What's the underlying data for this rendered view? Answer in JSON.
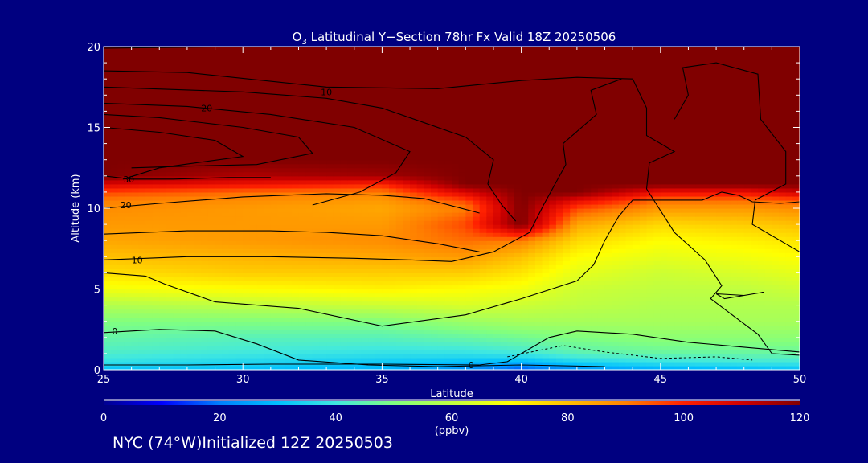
{
  "chart_data": {
    "type": "heatmap",
    "title_parts": [
      "O",
      "3",
      " Latitudinal Y−Section 78hr  Fx Valid 18Z 20250506"
    ],
    "xlabel": "Latitude",
    "ylabel": "Altitude (km)",
    "xlim": [
      25,
      50
    ],
    "ylim": [
      0,
      20
    ],
    "x_ticks": [
      25,
      30,
      35,
      40,
      45,
      50
    ],
    "y_ticks": [
      0,
      5,
      10,
      15,
      20
    ],
    "colorbar": {
      "label": "(ppbv)",
      "min": 0,
      "max": 120,
      "ticks": [
        0,
        20,
        40,
        60,
        80,
        100,
        120
      ],
      "colors": [
        "#000090",
        "#0000ff",
        "#0080ff",
        "#00c0ff",
        "#40e8e0",
        "#80ff80",
        "#c0ff40",
        "#ffff00",
        "#ffc000",
        "#ff8000",
        "#ff2000",
        "#d00000",
        "#800000"
      ]
    },
    "ozone_ppbv": {
      "lat": [
        25,
        30,
        35,
        38,
        40,
        42,
        45,
        48,
        50
      ],
      "alt": [
        0,
        0.5,
        1,
        2,
        3,
        4,
        5,
        6,
        7,
        8,
        9,
        10,
        10.5,
        11,
        11.5,
        12,
        13,
        15,
        20
      ],
      "values": [
        [
          30,
          30,
          28,
          22,
          15,
          22,
          26,
          28,
          30
        ],
        [
          38,
          35,
          32,
          30,
          28,
          34,
          38,
          40,
          40
        ],
        [
          42,
          40,
          38,
          38,
          40,
          44,
          46,
          46,
          46
        ],
        [
          46,
          44,
          44,
          46,
          48,
          50,
          52,
          52,
          52
        ],
        [
          50,
          50,
          50,
          54,
          56,
          56,
          56,
          56,
          56
        ],
        [
          58,
          60,
          62,
          64,
          62,
          60,
          58,
          58,
          58
        ],
        [
          68,
          70,
          72,
          70,
          68,
          62,
          60,
          60,
          62
        ],
        [
          75,
          78,
          78,
          78,
          74,
          66,
          62,
          64,
          66
        ],
        [
          80,
          82,
          84,
          86,
          80,
          70,
          66,
          68,
          70
        ],
        [
          84,
          86,
          88,
          92,
          90,
          76,
          70,
          72,
          74
        ],
        [
          86,
          86,
          86,
          96,
          120,
          84,
          76,
          78,
          80
        ],
        [
          88,
          86,
          84,
          90,
          120,
          96,
          86,
          86,
          88
        ],
        [
          90,
          88,
          86,
          96,
          120,
          106,
          92,
          92,
          94
        ],
        [
          96,
          92,
          90,
          108,
          120,
          120,
          104,
          104,
          110
        ],
        [
          108,
          104,
          100,
          120,
          120,
          120,
          120,
          120,
          120
        ],
        [
          120,
          114,
          116,
          120,
          120,
          120,
          120,
          120,
          120
        ],
        [
          120,
          120,
          120,
          120,
          120,
          120,
          120,
          120,
          120
        ],
        [
          120,
          120,
          120,
          120,
          120,
          120,
          120,
          120,
          120
        ],
        [
          120,
          120,
          120,
          120,
          120,
          120,
          120,
          120,
          120
        ]
      ]
    },
    "contours": [
      {
        "label": "",
        "points": [
          [
            25,
            19.9
          ],
          [
            30,
            20
          ],
          [
            38,
            20
          ],
          [
            45,
            20
          ],
          [
            50,
            20
          ]
        ]
      },
      {
        "label": "10",
        "label_at": [
          33,
          17.2
        ],
        "points": [
          [
            25,
            18.5
          ],
          [
            28,
            18.4
          ],
          [
            33,
            17.5
          ],
          [
            37,
            17.4
          ],
          [
            40,
            17.9
          ],
          [
            42,
            18.1
          ],
          [
            44,
            18.0
          ],
          [
            44.5,
            16.2
          ],
          [
            44.5,
            14.5
          ],
          [
            45.5,
            13.5
          ],
          [
            44.6,
            12.8
          ],
          [
            44.5,
            11.2
          ],
          [
            45.5,
            8.5
          ],
          [
            46.6,
            6.8
          ],
          [
            47.2,
            5.2
          ],
          [
            46.8,
            4.4
          ],
          [
            48.5,
            2.2
          ],
          [
            49,
            1.0
          ],
          [
            50,
            0.9
          ]
        ]
      },
      {
        "label": "",
        "points": [
          [
            25,
            17.5
          ],
          [
            30,
            17.2
          ],
          [
            33,
            16.8
          ],
          [
            35,
            16.2
          ],
          [
            38,
            14.4
          ],
          [
            39,
            13.0
          ],
          [
            38.8,
            11.5
          ],
          [
            39.3,
            10.2
          ],
          [
            39.8,
            9.2
          ]
        ]
      },
      {
        "label": "20",
        "label_at": [
          28.7,
          16.2
        ],
        "points": [
          [
            25,
            16.5
          ],
          [
            28,
            16.3
          ],
          [
            31,
            15.8
          ],
          [
            34,
            15.0
          ],
          [
            36,
            13.5
          ],
          [
            35.5,
            12.2
          ],
          [
            34.2,
            11.0
          ],
          [
            32.5,
            10.2
          ]
        ]
      },
      {
        "label": "",
        "points": [
          [
            25,
            15.8
          ],
          [
            27,
            15.6
          ],
          [
            30,
            15.0
          ],
          [
            32,
            14.4
          ],
          [
            32.5,
            13.4
          ],
          [
            30.5,
            12.7
          ],
          [
            28,
            12.6
          ],
          [
            26,
            12.5
          ]
        ]
      },
      {
        "label": "",
        "points": [
          [
            25,
            15
          ],
          [
            27,
            14.7
          ],
          [
            29,
            14.2
          ],
          [
            30,
            13.2
          ],
          [
            27,
            12.5
          ],
          [
            25.7,
            11.8
          ]
        ]
      },
      {
        "label": "30",
        "label_at": [
          25.9,
          11.8
        ],
        "points": [
          [
            25,
            12.0
          ],
          [
            26,
            11.8
          ],
          [
            27.5,
            11.8
          ],
          [
            29.5,
            11.9
          ],
          [
            31,
            11.9
          ]
        ]
      },
      {
        "label": "20",
        "label_at": [
          25.8,
          10.2
        ],
        "points": [
          [
            25,
            10.0
          ],
          [
            27,
            10.3
          ],
          [
            30,
            10.7
          ],
          [
            33,
            10.9
          ],
          [
            35,
            10.8
          ],
          [
            36.5,
            10.6
          ],
          [
            38.5,
            9.7
          ]
        ]
      },
      {
        "label": "",
        "points": [
          [
            25,
            8.4
          ],
          [
            28,
            8.6
          ],
          [
            31,
            8.6
          ],
          [
            33,
            8.5
          ],
          [
            35,
            8.3
          ],
          [
            37,
            7.8
          ],
          [
            38.5,
            7.3
          ]
        ]
      },
      {
        "label": "10",
        "label_at": [
          26.2,
          6.8
        ],
        "points": [
          [
            25,
            6.8
          ],
          [
            28,
            7.0
          ],
          [
            31,
            7.0
          ],
          [
            34,
            6.9
          ],
          [
            36,
            6.8
          ],
          [
            37.5,
            6.7
          ],
          [
            39,
            7.3
          ],
          [
            40.3,
            8.5
          ],
          [
            40.8,
            10.2
          ],
          [
            41.6,
            12.7
          ],
          [
            41.5,
            14.0
          ],
          [
            42.7,
            15.8
          ],
          [
            42.5,
            17.3
          ],
          [
            43.6,
            18.0
          ]
        ]
      },
      {
        "label": "",
        "points": [
          [
            25,
            6.0
          ],
          [
            26.5,
            5.8
          ],
          [
            27.2,
            5.3
          ],
          [
            29,
            4.2
          ],
          [
            32,
            3.8
          ],
          [
            35,
            2.7
          ],
          [
            38,
            3.4
          ],
          [
            40,
            4.4
          ],
          [
            42,
            5.5
          ],
          [
            42.6,
            6.5
          ],
          [
            43,
            8.0
          ],
          [
            43.5,
            9.5
          ],
          [
            44,
            10.5
          ],
          [
            45.3,
            10.5
          ],
          [
            46.5,
            10.5
          ],
          [
            47.2,
            11.0
          ],
          [
            47.8,
            10.8
          ],
          [
            48.3,
            10.4
          ],
          [
            49.3,
            10.3
          ],
          [
            50,
            10.4
          ]
        ]
      },
      {
        "label": "0",
        "label_at": [
          25.4,
          2.4
        ],
        "points": [
          [
            25,
            2.3
          ],
          [
            27,
            2.5
          ],
          [
            29,
            2.4
          ],
          [
            30.5,
            1.6
          ],
          [
            32,
            0.6
          ],
          [
            34.5,
            0.3
          ],
          [
            37,
            0.2
          ],
          [
            40,
            0.3
          ],
          [
            43,
            0.2
          ]
        ]
      },
      {
        "label": "",
        "points": [
          [
            47,
            4.7
          ],
          [
            48,
            4.6
          ],
          [
            48.7,
            4.8
          ],
          [
            47.3,
            4.4
          ],
          [
            47,
            4.7
          ]
        ]
      },
      {
        "label": "",
        "points": [
          [
            25,
            0.3
          ],
          [
            28,
            0.3
          ],
          [
            31,
            0.35
          ],
          [
            35,
            0.35
          ],
          [
            38.5,
            0.3
          ]
        ]
      },
      {
        "label": "0",
        "label_at": [
          38.2,
          0.3
        ],
        "points": [
          [
            38.5,
            0.3
          ],
          [
            39.5,
            0.5
          ],
          [
            40.3,
            1.3
          ],
          [
            41,
            2.0
          ],
          [
            42,
            2.4
          ],
          [
            44,
            2.2
          ],
          [
            46,
            1.7
          ],
          [
            48,
            1.4
          ],
          [
            50,
            1.1
          ]
        ]
      },
      {
        "label": "",
        "points": [
          [
            45.5,
            15.5
          ],
          [
            46,
            17.0
          ],
          [
            45.8,
            18.7
          ],
          [
            47,
            19.0
          ],
          [
            48.5,
            18.3
          ],
          [
            48.6,
            15.5
          ],
          [
            49.5,
            13.5
          ],
          [
            49.5,
            11.5
          ],
          [
            48.4,
            10.5
          ],
          [
            48.3,
            9.0
          ],
          [
            49.8,
            7.5
          ],
          [
            50,
            7.3
          ]
        ]
      }
    ],
    "dashed_contours": [
      [
        [
          39.5,
          0.8
        ],
        [
          41.5,
          1.5
        ],
        [
          43,
          1.1
        ],
        [
          45,
          0.7
        ],
        [
          47,
          0.8
        ],
        [
          48.3,
          0.6
        ]
      ]
    ]
  },
  "footer": "NYC (74°W)Initialized 12Z 20250503"
}
